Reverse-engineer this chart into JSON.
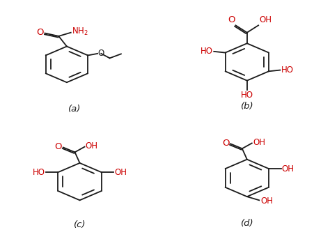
{
  "background": "#ffffff",
  "label_color_black": "#1a1a1a",
  "label_color_red": "#cc0000",
  "line_color": "#1a1a1a",
  "label_fontsize": 8.5,
  "caption_fontsize": 9.5,
  "captions": [
    "(a)",
    "(b)",
    "(c)",
    "(d)"
  ]
}
